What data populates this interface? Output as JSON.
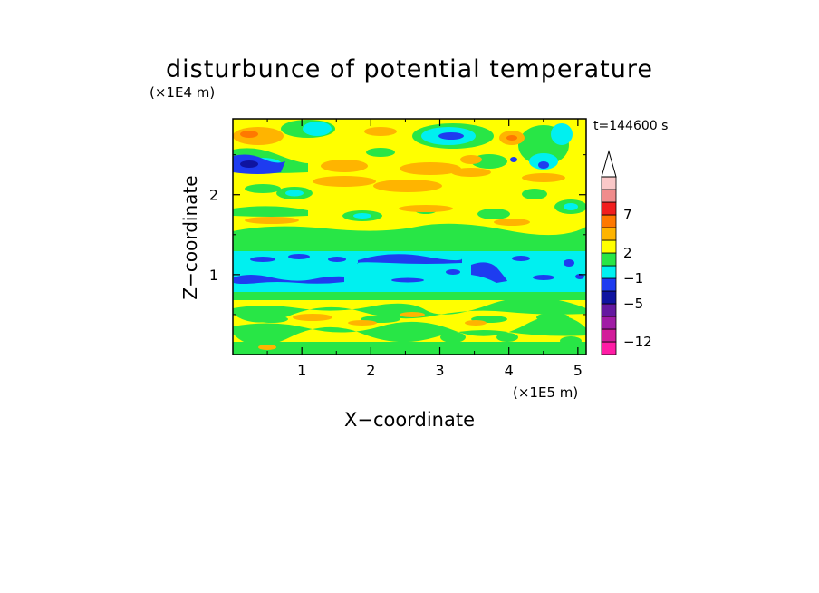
{
  "chart_data": {
    "type": "heatmap",
    "title": "disturbunce of potential temperature",
    "time_label": "t=144600 s",
    "xlabel": "X−coordinate",
    "ylabel": "Z−coordinate",
    "x_scale_label": "(×1E5 m)",
    "y_scale_label": "(×1E4 m)",
    "xlim": [
      0,
      5.12
    ],
    "ylim": [
      0,
      2.95
    ],
    "x_ticks": [
      {
        "value": 1,
        "label": "1"
      },
      {
        "value": 2,
        "label": "2"
      },
      {
        "value": 3,
        "label": "3"
      },
      {
        "value": 4,
        "label": "4"
      },
      {
        "value": 5,
        "label": "5"
      }
    ],
    "y_ticks": [
      {
        "value": 1,
        "label": "1"
      },
      {
        "value": 2,
        "label": "2"
      }
    ],
    "colorbar": {
      "levels": [
        {
          "label": "",
          "color": "#ff1ca5"
        },
        {
          "label": "−12",
          "color": "#d21c9a"
        },
        {
          "label": "",
          "color": "#a01ca5"
        },
        {
          "label": "",
          "color": "#6419a0"
        },
        {
          "label": "−5",
          "color": "#0f14a0"
        },
        {
          "label": "",
          "color": "#1e3cf0"
        },
        {
          "label": "−1",
          "color": "#00f0f0"
        },
        {
          "label": "",
          "color": "#28e646"
        },
        {
          "label": "2",
          "color": "#ffff00"
        },
        {
          "label": "",
          "color": "#ffb400"
        },
        {
          "label": "",
          "color": "#ff7800"
        },
        {
          "label": "7",
          "color": "#f01e1e"
        },
        {
          "label": "",
          "color": "#f08c8c"
        },
        {
          "label": "",
          "color": "#fac8c8"
        }
      ],
      "extend_top": true
    },
    "vertical_bands": [
      {
        "z": [
          0.0,
          0.08
        ],
        "level": "green"
      },
      {
        "z": [
          0.08,
          0.45
        ],
        "level": "yellow"
      },
      {
        "z": [
          0.45,
          0.62
        ],
        "level": "green/yellow"
      },
      {
        "z": [
          0.62,
          0.77
        ],
        "level": "yellow"
      },
      {
        "z": [
          0.77,
          0.87
        ],
        "level": "green"
      },
      {
        "z": [
          0.87,
          1.38
        ],
        "level": "cyan",
        "embedded": "blue streaks near z≈1.0 and z≈1.25"
      },
      {
        "z": [
          1.38,
          1.55
        ],
        "level": "green"
      },
      {
        "z": [
          1.55,
          2.0
        ],
        "level": "yellow",
        "embedded": "orange patches"
      },
      {
        "z": [
          2.0,
          2.55
        ],
        "level": "yellow/orange",
        "embedded": "green and cyan patches"
      },
      {
        "z": [
          2.55,
          2.95
        ],
        "level": "mixed",
        "embedded": "blue, cyan, orange patches"
      }
    ]
  }
}
